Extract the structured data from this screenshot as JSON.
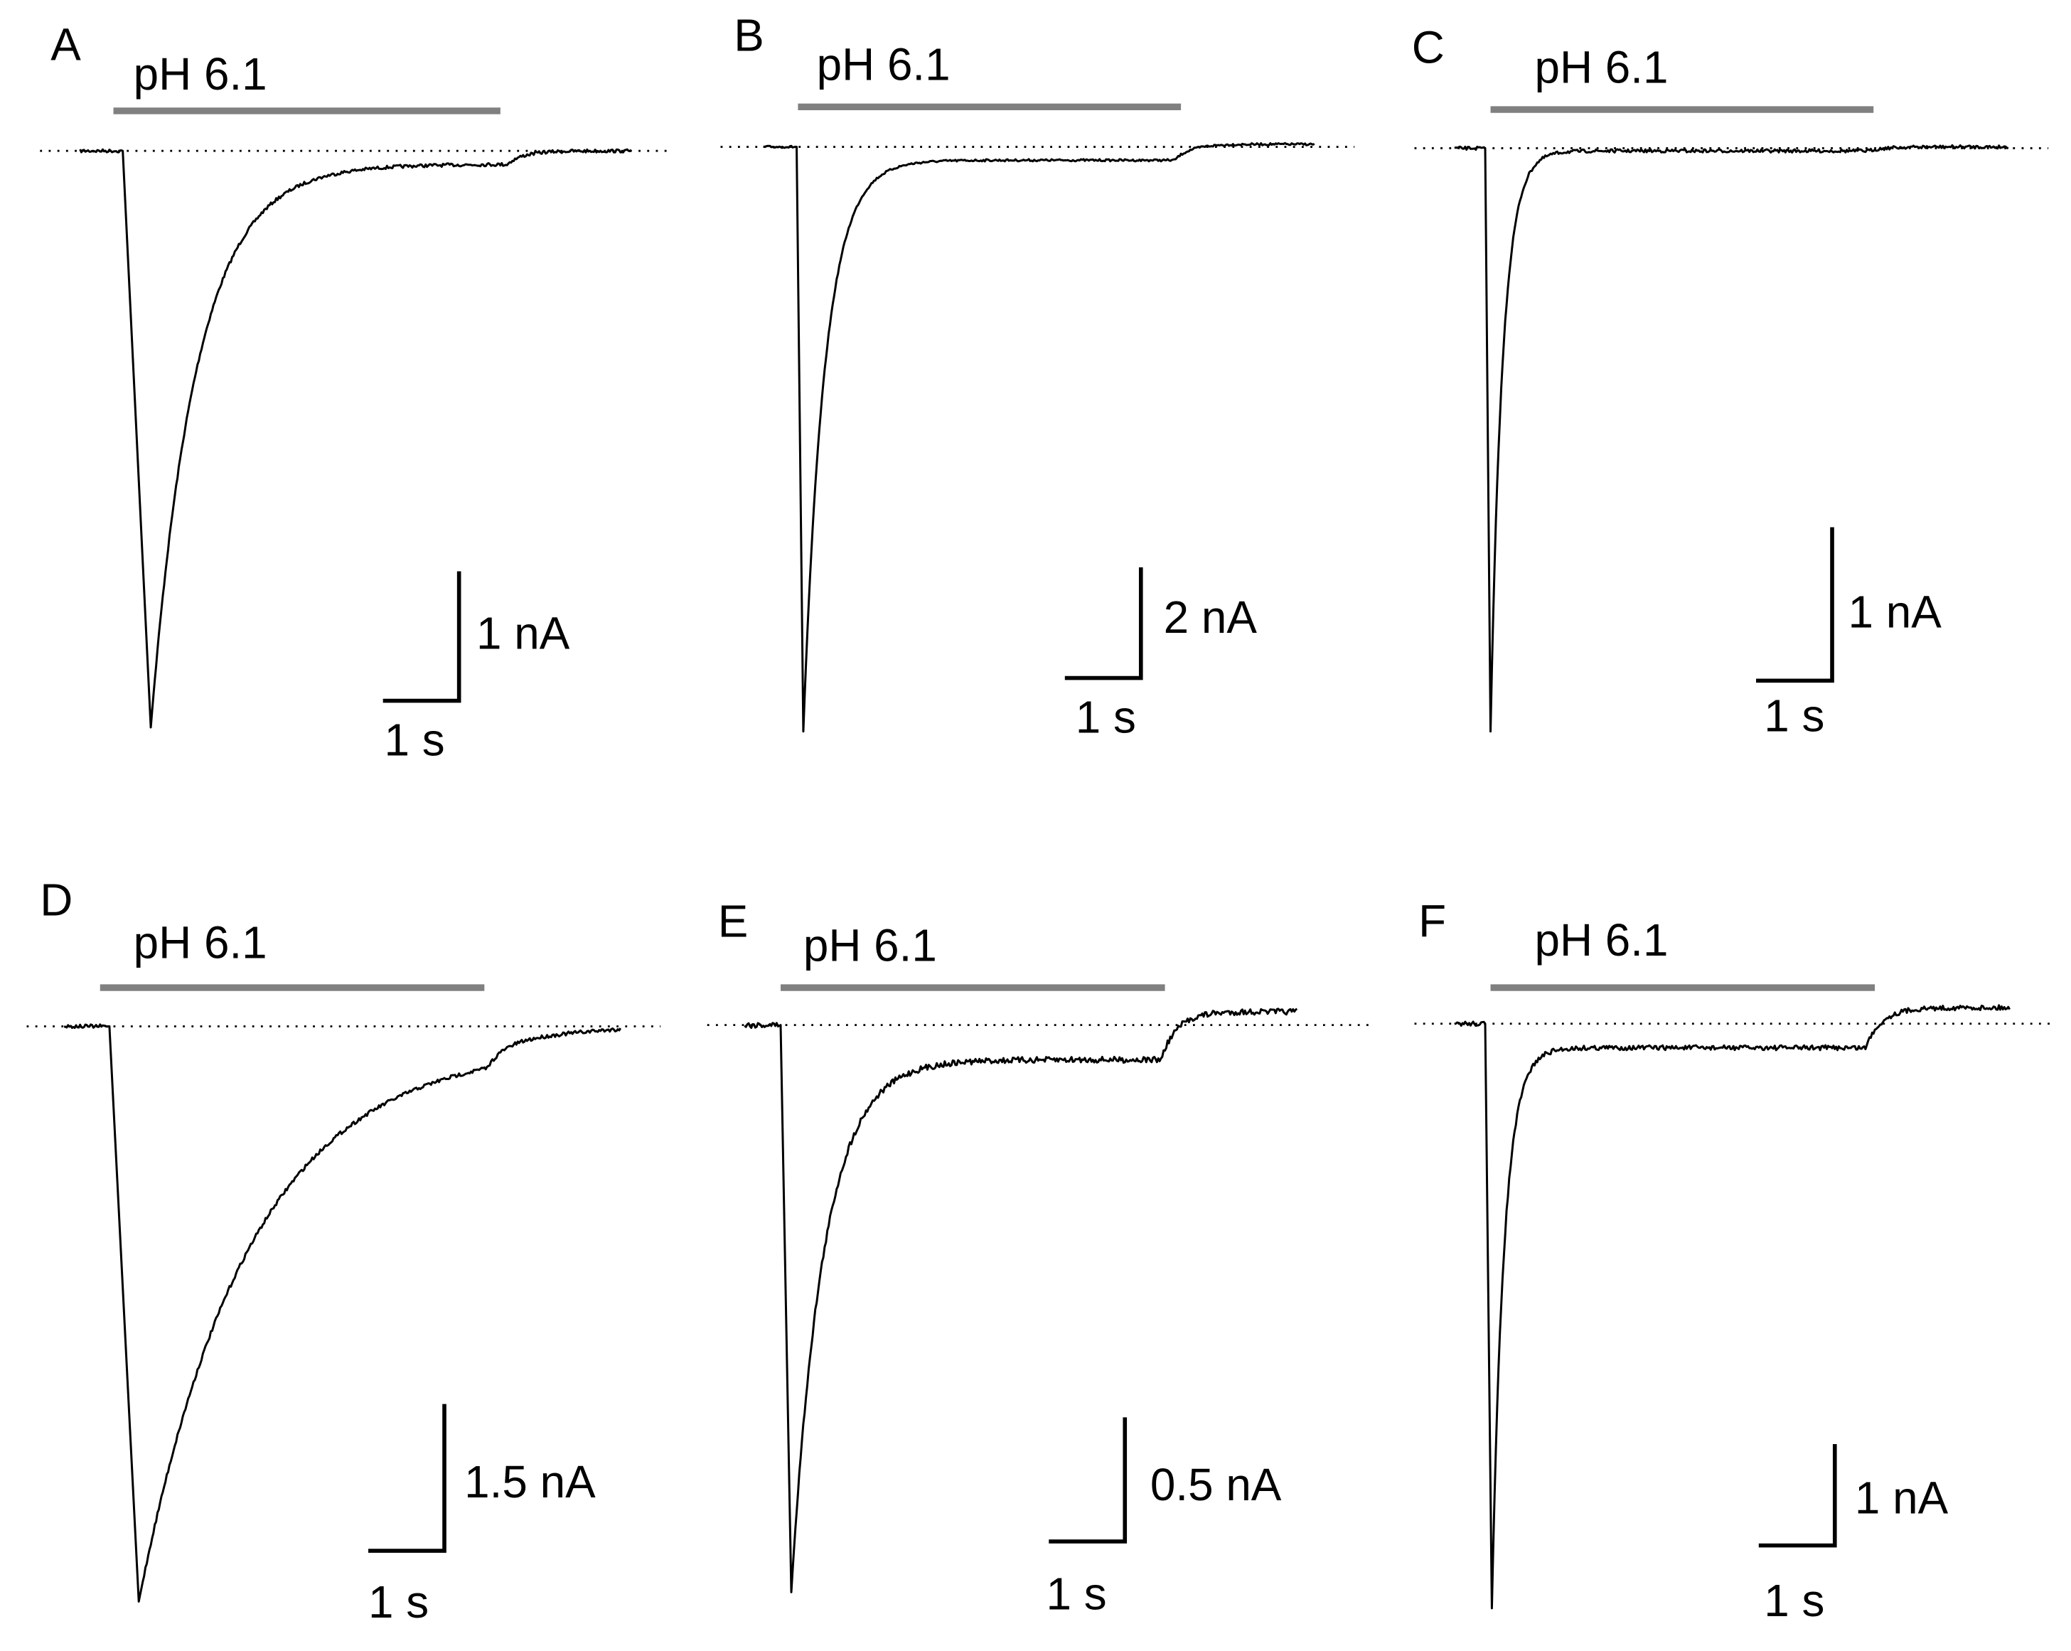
{
  "panels": [
    {
      "label": "A",
      "stimulus": "pH 6.1",
      "scale_y": "1 nA",
      "scale_x": "1 s"
    },
    {
      "label": "B",
      "stimulus": "pH 6.1",
      "scale_y": "2 nA",
      "scale_x": "1 s"
    },
    {
      "label": "C",
      "stimulus": "pH 6.1",
      "scale_y": "1 nA",
      "scale_x": "1 s"
    },
    {
      "label": "D",
      "stimulus": "pH 6.1",
      "scale_y": "1.5 nA",
      "scale_x": "1 s"
    },
    {
      "label": "E",
      "stimulus": "pH 6.1",
      "scale_y": "0.5 nA",
      "scale_x": "1 s"
    },
    {
      "label": "F",
      "stimulus": "pH 6.1",
      "scale_y": "1 nA",
      "scale_x": "1 s"
    }
  ]
}
